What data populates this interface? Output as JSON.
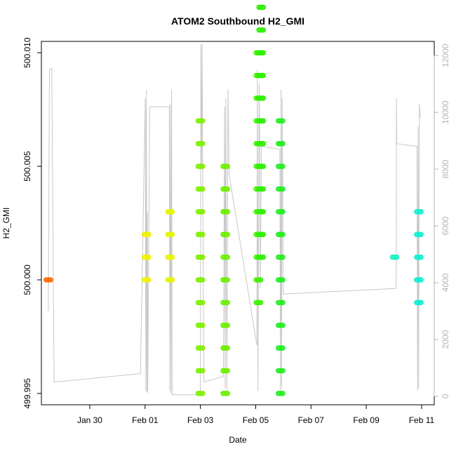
{
  "chart_data": {
    "type": "scatter",
    "title": "ATOM2 Southbound H2_GMI",
    "xlabel": "Date",
    "ylabel": "H2_GMI",
    "x_ticks": [
      {
        "date": "2016-01-30",
        "label": "Jan 30"
      },
      {
        "date": "2016-02-01",
        "label": "Feb 01"
      },
      {
        "date": "2016-02-03",
        "label": "Feb 03"
      },
      {
        "date": "2016-02-05",
        "label": "Feb 05"
      },
      {
        "date": "2016-02-07",
        "label": "Feb 07"
      },
      {
        "date": "2016-02-09",
        "label": "Feb 09"
      },
      {
        "date": "2016-02-11",
        "label": "Feb 11"
      }
    ],
    "xlim": [
      "2016-01-28 06:00",
      "2016-02-11 11:00"
    ],
    "ylim": [
      499.9945,
      500.0105
    ],
    "y_ticks": [
      499.995,
      500.0,
      500.005,
      500.01
    ],
    "y_tick_labels": [
      "499.995",
      "500.000",
      "500.005",
      "500.010"
    ],
    "y2_label": "",
    "y2lim": [
      -300,
      12500
    ],
    "y2_ticks": [
      0,
      2000,
      4000,
      6000,
      8000,
      10000,
      12000
    ],
    "y2_tick_labels": [
      "0",
      "2000",
      "4000",
      "6000",
      "8000",
      "10000",
      "12000"
    ],
    "grid": false,
    "legend": "none",
    "point_groups": [
      {
        "date": "2016-01-28 12:00",
        "color": "#ff6a00",
        "values": [
          500.0
        ]
      },
      {
        "date": "2016-02-01 01:12",
        "color": "#f2f200",
        "values": [
          500.0,
          500.001,
          500.002
        ]
      },
      {
        "date": "2016-02-01 21:36",
        "color": "#e6f500",
        "values": [
          500.0,
          500.001,
          500.002,
          500.003
        ]
      },
      {
        "date": "2016-02-03 00:00",
        "color": "#7ff000",
        "values": [
          499.995,
          499.996,
          499.997,
          499.998,
          499.999,
          500.0,
          500.001,
          500.002,
          500.003,
          500.004,
          500.005,
          500.006,
          500.007
        ]
      },
      {
        "date": "2016-02-03 21:36",
        "color": "#6cf000",
        "values": [
          499.995,
          499.996,
          499.997,
          499.998,
          499.999,
          500.0,
          500.001,
          500.002,
          500.003,
          500.004,
          500.005
        ]
      },
      {
        "date": "2016-02-05 02:24",
        "color": "#3ef000",
        "values": [
          499.999,
          500.0,
          500.001,
          500.002,
          500.003,
          500.004,
          500.005,
          500.006,
          500.007,
          500.008,
          500.009,
          500.01
        ]
      },
      {
        "date": "2016-02-05 04:48",
        "color": "#2ef000",
        "values": [
          500.001,
          500.002,
          500.003,
          500.004,
          500.005,
          500.006,
          500.007,
          500.008,
          500.009,
          500.01,
          500.011,
          500.012
        ]
      },
      {
        "date": "2016-02-05 21:36",
        "color": "#22f020",
        "values": [
          499.995,
          499.996,
          499.997,
          499.998,
          499.999,
          500.0,
          500.001,
          500.002,
          500.003,
          500.004,
          500.005,
          500.006,
          500.007
        ]
      },
      {
        "date": "2016-02-10 00:36",
        "color": "#1ff0c0",
        "values": [
          500.001
        ]
      },
      {
        "date": "2016-02-10 21:36",
        "color": "#10f0d2",
        "values": [
          499.999,
          500.0,
          500.001,
          500.002,
          500.003
        ]
      }
    ],
    "secondary_line": {
      "color": "#c8c8c8",
      "points": [
        [
          "2016-01-28 12:00",
          3000
        ],
        [
          "2016-01-28 13:00",
          11500
        ],
        [
          "2016-01-28 15:00",
          11550
        ],
        [
          "2016-01-28 17:00",
          500
        ],
        [
          "2016-01-31 20:00",
          800
        ],
        [
          "2016-02-01 00:10",
          10500
        ],
        [
          "2016-02-01 00:40",
          200
        ],
        [
          "2016-02-01 01:10",
          10800
        ],
        [
          "2016-02-01 01:30",
          150
        ],
        [
          "2016-02-01 02:00",
          6500
        ],
        [
          "2016-02-01 02:20",
          100
        ],
        [
          "2016-02-01 04:00",
          10200
        ],
        [
          "2016-02-01 21:00",
          10200
        ],
        [
          "2016-02-01 21:30",
          200
        ],
        [
          "2016-02-01 22:00",
          10300
        ],
        [
          "2016-02-01 22:30",
          100
        ],
        [
          "2016-02-01 23:00",
          10800
        ],
        [
          "2016-02-01 23:30",
          50
        ],
        [
          "2016-02-03 00:00",
          50
        ],
        [
          "2016-02-03 00:30",
          12400
        ],
        [
          "2016-02-03 01:00",
          8000
        ],
        [
          "2016-02-03 01:30",
          12400
        ],
        [
          "2016-02-03 02:00",
          7800
        ],
        [
          "2016-02-03 03:00",
          500
        ],
        [
          "2016-02-03 20:00",
          700
        ],
        [
          "2016-02-03 21:00",
          10200
        ],
        [
          "2016-02-03 21:30",
          300
        ],
        [
          "2016-02-03 22:00",
          10500
        ],
        [
          "2016-02-03 23:00",
          200
        ],
        [
          "2016-02-04 00:00",
          10800
        ],
        [
          "2016-02-04 01:00",
          7800
        ],
        [
          "2016-02-05 01:00",
          1800
        ],
        [
          "2016-02-05 01:30",
          11500
        ],
        [
          "2016-02-05 02:00",
          200
        ],
        [
          "2016-02-05 03:00",
          11000
        ],
        [
          "2016-02-05 03:30",
          8900
        ],
        [
          "2016-02-05 04:00",
          3800
        ],
        [
          "2016-02-05 05:00",
          8800
        ],
        [
          "2016-02-05 21:00",
          8700
        ],
        [
          "2016-02-05 21:30",
          200
        ],
        [
          "2016-02-05 22:00",
          10800
        ],
        [
          "2016-02-05 22:30",
          300
        ],
        [
          "2016-02-05 23:00",
          10500
        ],
        [
          "2016-02-06 00:00",
          3600
        ],
        [
          "2016-02-10 02:00",
          3800
        ],
        [
          "2016-02-10 02:10",
          10500
        ],
        [
          "2016-02-10 02:30",
          8900
        ],
        [
          "2016-02-10 20:00",
          8800
        ],
        [
          "2016-02-10 20:30",
          200
        ],
        [
          "2016-02-10 21:00",
          9500
        ],
        [
          "2016-02-10 21:30",
          300
        ],
        [
          "2016-02-10 22:00",
          10300
        ],
        [
          "2016-02-10 23:00",
          9800
        ]
      ]
    }
  }
}
